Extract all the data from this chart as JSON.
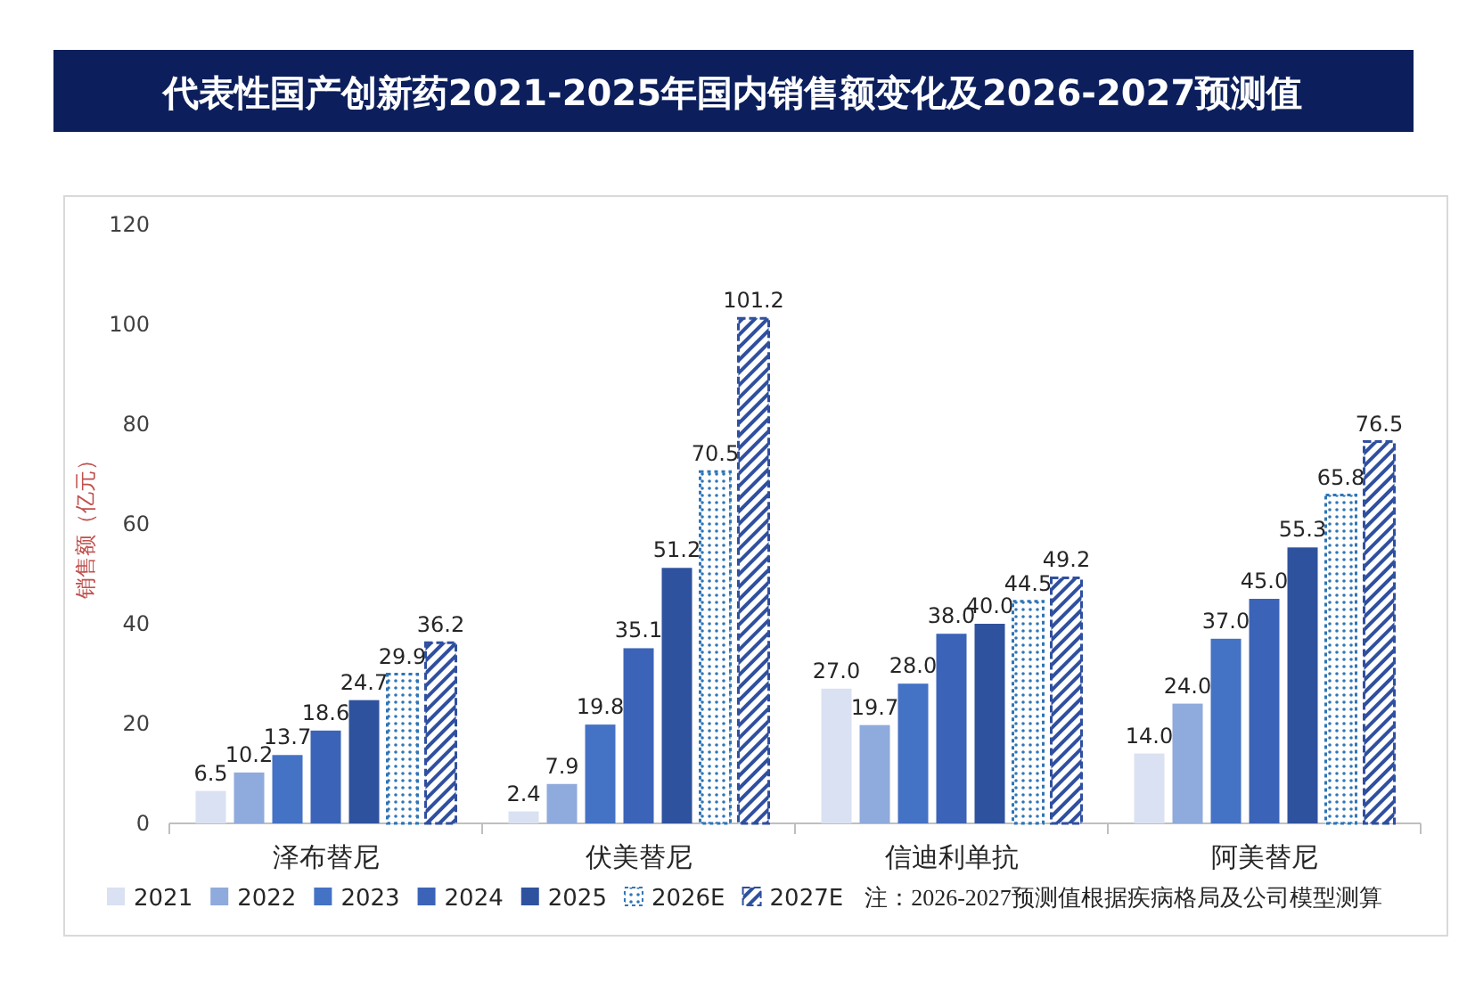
{
  "chart_data": {
    "type": "bar",
    "title": "代表性国产创新药2021-2025年国内销售额变化及2026-2027预测值",
    "ylabel": "销售额（亿元）",
    "categories": [
      "泽布替尼",
      "伏美替尼",
      "信迪利单抗",
      "阿美替尼"
    ],
    "series": [
      {
        "name": "2021",
        "color": "#d9e1f2",
        "values": [
          6.5,
          2.4,
          27.0,
          14.0
        ],
        "value_labels": [
          "6.5",
          "2.4",
          "27.0",
          "14.0"
        ]
      },
      {
        "name": "2022",
        "color": "#8faadc",
        "values": [
          10.2,
          7.9,
          19.7,
          24.0
        ],
        "value_labels": [
          "10.2",
          "7.9",
          "19.7",
          "24.0"
        ]
      },
      {
        "name": "2023",
        "color": "#4472c4",
        "values": [
          13.7,
          19.8,
          28.0,
          37.0
        ],
        "value_labels": [
          "13.7",
          "19.8",
          "28.0",
          "37.0"
        ]
      },
      {
        "name": "2024",
        "color": "#3b64b8",
        "values": [
          18.6,
          35.1,
          38.0,
          45.0
        ],
        "value_labels": [
          "18.6",
          "35.1",
          "38.0",
          "45.0"
        ]
      },
      {
        "name": "2025",
        "color": "#2f529e",
        "values": [
          24.7,
          51.2,
          40.0,
          55.3
        ],
        "value_labels": [
          "24.7",
          "51.2",
          "40.0",
          "55.3"
        ]
      },
      {
        "name": "2026E",
        "color": "#2e75b6",
        "line_style": "dotted",
        "values": [
          29.9,
          70.5,
          44.5,
          65.8
        ],
        "value_labels": [
          "29.9",
          "70.5",
          "44.5",
          "65.8"
        ]
      },
      {
        "name": "2027E",
        "color": "#2f4f9f",
        "line_style": "dashed",
        "values": [
          36.2,
          101.2,
          49.2,
          76.5
        ],
        "value_labels": [
          "36.2",
          "101.2",
          "49.2",
          "76.5"
        ]
      }
    ],
    "ylim": [
      0,
      120
    ],
    "yticks": [
      0,
      20,
      40,
      60,
      80,
      100,
      120
    ],
    "grid": false,
    "legend": "bottom",
    "annotations": [
      "注：2026-2027预测值根据疾病格局及公司模型测算"
    ]
  }
}
